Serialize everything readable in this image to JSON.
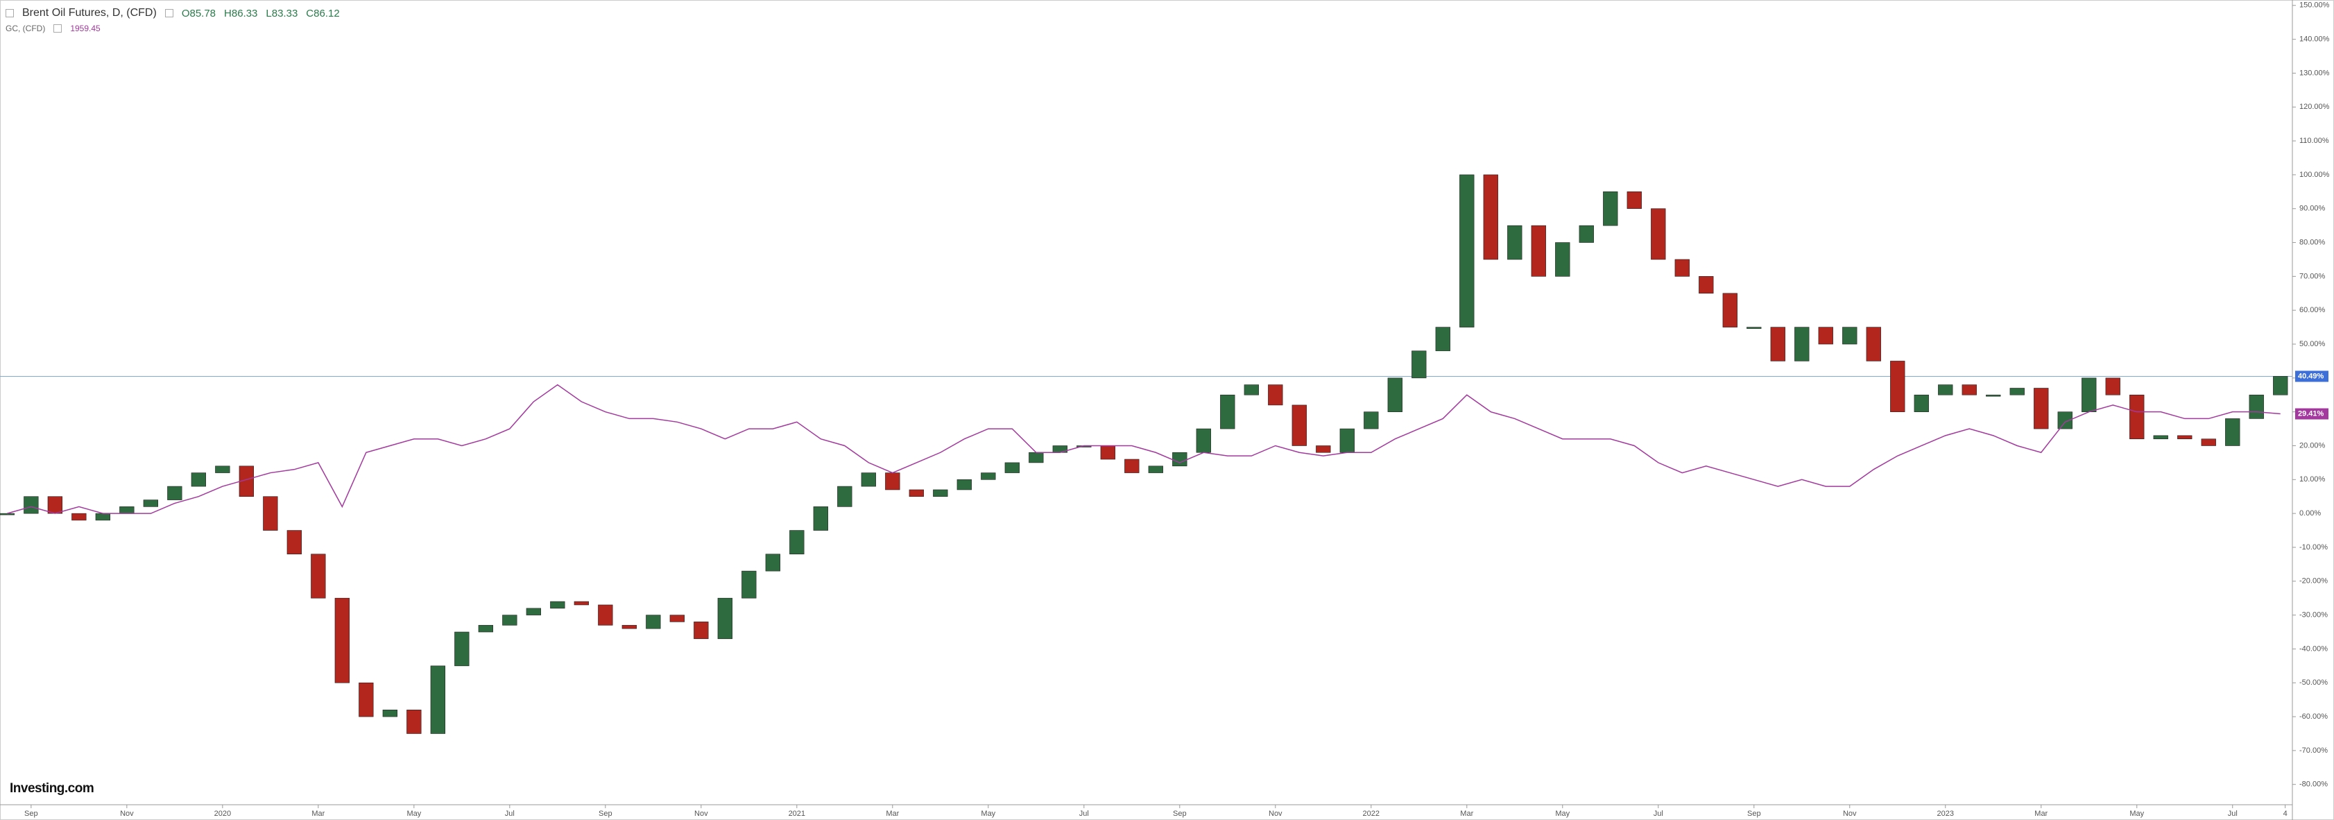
{
  "header": {
    "title": "Brent Oil Futures, D, (CFD)",
    "open": "O85.78",
    "high": "H86.33",
    "low": "L83.33",
    "close": "C86.12",
    "second_title": "GC, (CFD)",
    "second_value": "1959.45"
  },
  "brand": "Investing.com",
  "chart_data": {
    "type": "candle-line",
    "x": [
      0.5,
      1,
      1.5,
      2,
      2.5,
      3,
      3.5,
      4,
      4.5,
      5,
      5.5,
      6,
      6.5,
      7,
      7.5,
      8,
      8.5,
      9,
      9.5,
      10,
      10.5,
      11,
      11.5,
      12,
      12.5,
      13,
      13.5,
      14,
      14.5,
      15,
      15.5,
      16,
      16.5,
      17,
      17.5,
      18,
      18.5,
      19,
      19.5,
      20,
      20.5,
      21,
      21.5,
      22,
      22.5,
      23,
      23.5,
      24,
      24.5,
      25,
      25.5,
      26,
      26.5,
      27,
      27.5,
      28,
      28.5,
      29,
      29.5,
      30,
      30.5,
      31,
      31.5,
      32,
      32.5,
      33,
      33.5,
      34,
      34.5,
      35,
      35.5,
      36,
      36.5,
      37,
      37.5,
      38,
      38.5,
      39,
      39.5,
      40,
      40.5,
      41,
      41.5,
      42,
      42.5,
      43,
      43.5,
      44,
      44.5,
      45,
      45.5,
      46,
      46.5,
      47,
      47.5,
      48
    ],
    "series": [
      {
        "name": "Brent Oil Futures",
        "up_color": "#2e6b3f",
        "down_color": "#b3261e",
        "line_color": "#7fa9d6",
        "last_label": "40.49%",
        "label_color": "#3d6fd8",
        "values": [
          0,
          5,
          0,
          -2,
          0,
          2,
          4,
          8,
          12,
          14,
          5,
          -5,
          -12,
          -25,
          -50,
          -60,
          -58,
          -65,
          -45,
          -35,
          -33,
          -30,
          -28,
          -26,
          -27,
          -33,
          -34,
          -30,
          -32,
          -37,
          -25,
          -17,
          -12,
          -5,
          2,
          8,
          12,
          7,
          5,
          7,
          10,
          12,
          15,
          18,
          20,
          20,
          16,
          12,
          14,
          18,
          25,
          35,
          38,
          32,
          20,
          18,
          25,
          30,
          40,
          48,
          55,
          100,
          75,
          85,
          70,
          80,
          85,
          95,
          90,
          75,
          70,
          65,
          55,
          55,
          45,
          55,
          50,
          55,
          45,
          30,
          35,
          38,
          35,
          35,
          37,
          25,
          30,
          40,
          35,
          22,
          23,
          22,
          20,
          28,
          35,
          40.49
        ]
      },
      {
        "name": "GC",
        "color": "#a3399e",
        "last_label": "29.41%",
        "values": [
          0,
          2,
          0,
          2,
          0,
          0,
          0,
          3,
          5,
          8,
          10,
          12,
          13,
          15,
          2,
          18,
          20,
          22,
          22,
          20,
          22,
          25,
          33,
          38,
          33,
          30,
          28,
          28,
          27,
          25,
          22,
          25,
          25,
          27,
          22,
          20,
          15,
          12,
          15,
          18,
          22,
          25,
          25,
          18,
          18,
          20,
          20,
          20,
          18,
          15,
          18,
          17,
          17,
          20,
          18,
          17,
          18,
          18,
          22,
          25,
          28,
          35,
          30,
          28,
          25,
          22,
          22,
          22,
          20,
          15,
          12,
          14,
          12,
          10,
          8,
          10,
          8,
          8,
          13,
          17,
          20,
          23,
          25,
          23,
          20,
          18,
          27,
          30,
          32,
          30,
          30,
          28,
          28,
          30,
          30,
          29.41
        ]
      }
    ],
    "xlim": [
      0.35,
      48.25
    ],
    "xticks": [
      {
        "value": 1,
        "label": "Sep"
      },
      {
        "value": 3,
        "label": "Nov"
      },
      {
        "value": 5,
        "label": "2020"
      },
      {
        "value": 7,
        "label": "Mar"
      },
      {
        "value": 9,
        "label": "May"
      },
      {
        "value": 11,
        "label": "Jul"
      },
      {
        "value": 13,
        "label": "Sep"
      },
      {
        "value": 15,
        "label": "Nov"
      },
      {
        "value": 17,
        "label": "2021"
      },
      {
        "value": 19,
        "label": "Mar"
      },
      {
        "value": 21,
        "label": "May"
      },
      {
        "value": 23,
        "label": "Jul"
      },
      {
        "value": 25,
        "label": "Sep"
      },
      {
        "value": 27,
        "label": "Nov"
      },
      {
        "value": 29,
        "label": "2022"
      },
      {
        "value": 31,
        "label": "Mar"
      },
      {
        "value": 33,
        "label": "May"
      },
      {
        "value": 35,
        "label": "Jul"
      },
      {
        "value": 37,
        "label": "Sep"
      },
      {
        "value": 39,
        "label": "Nov"
      },
      {
        "value": 41,
        "label": "2023"
      },
      {
        "value": 43,
        "label": "Mar"
      },
      {
        "value": 45,
        "label": "May"
      },
      {
        "value": 47,
        "label": "Jul"
      },
      {
        "value": 48.1,
        "label": "4"
      }
    ],
    "ylim": [
      -86,
      151.6
    ],
    "yticks": [
      {
        "value": -80,
        "label": "-80.00%"
      },
      {
        "value": -70,
        "label": "-70.00%"
      },
      {
        "value": -60,
        "label": "-60.00%"
      },
      {
        "value": -50,
        "label": "-50.00%"
      },
      {
        "value": -40,
        "label": "-40.00%"
      },
      {
        "value": -30,
        "label": "-30.00%"
      },
      {
        "value": -20,
        "label": "-20.00%"
      },
      {
        "value": -10,
        "label": "-10.00%"
      },
      {
        "value": 0,
        "label": "0.00%"
      },
      {
        "value": 10,
        "label": "10.00%"
      },
      {
        "value": 20,
        "label": "20.00%"
      },
      {
        "value": 30,
        "label": "30.00%"
      },
      {
        "value": 40,
        "label": "40.00%"
      },
      {
        "value": 50,
        "label": "50.00%"
      },
      {
        "value": 60,
        "label": "60.00%"
      },
      {
        "value": 70,
        "label": "70.00%"
      },
      {
        "value": 80,
        "label": "80.00%"
      },
      {
        "value": 90,
        "label": "90.00%"
      },
      {
        "value": 100,
        "label": "100.00%"
      },
      {
        "value": 110,
        "label": "110.00%"
      },
      {
        "value": 120,
        "label": "120.00%"
      },
      {
        "value": 130,
        "label": "130.00%"
      },
      {
        "value": 140,
        "label": "140.00%"
      },
      {
        "value": 150,
        "label": "150.00%"
      }
    ]
  }
}
